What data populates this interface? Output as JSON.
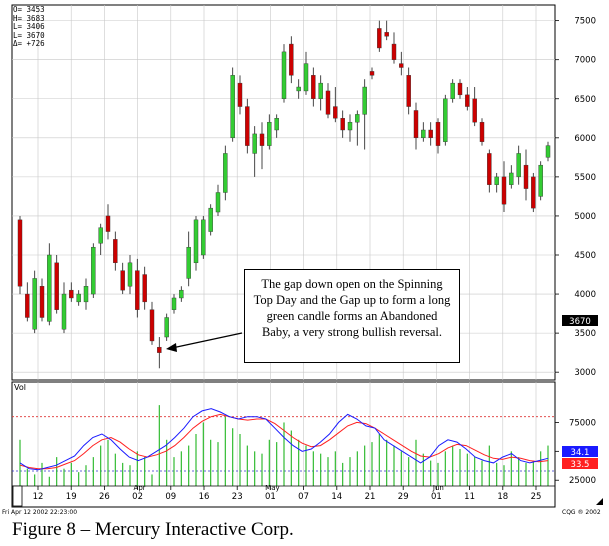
{
  "caption": "Figure 8 – Mercury Interactive Corp.",
  "annotation": "The gap down open on the Spinning Top Day and the Gap up to form a long green candle forms an Abandoned Baby, a very strong bullish reversal.",
  "ohlc_box": {
    "open": "O=  3453",
    "high": "H=  3683",
    "low": "L=  3406",
    "last": "L=  3670",
    "change": "Δ=  +726"
  },
  "footer_left": "Fri Apr 12 2002 22:23:00",
  "footer_right": "CQG ® 2002",
  "colors": {
    "up": "#33cc33",
    "down": "#cc0000",
    "grid": "#c8c8c8",
    "dot_red": "#dd3333",
    "dot_blue": "#3333cc",
    "blue_line": "#1a1aff",
    "red_line": "#ff2020"
  },
  "chart_data": {
    "type": "candlestick",
    "price": {
      "ylim": [
        2900,
        7700
      ],
      "yticks": [
        3000,
        3500,
        4000,
        4500,
        5000,
        5500,
        6000,
        6500,
        7000,
        7500
      ],
      "ytick_labels": [
        "3000",
        "3500",
        "4000",
        "4500",
        "5000",
        "5500",
        "6000",
        "6500",
        "7000",
        "7500"
      ],
      "last_label": "3670",
      "last_value": 3670,
      "candles": [
        {
          "o": 4950,
          "h": 5000,
          "l": 4000,
          "c": 4100
        },
        {
          "o": 4000,
          "h": 4150,
          "l": 3650,
          "c": 3700
        },
        {
          "o": 3550,
          "h": 4300,
          "l": 3500,
          "c": 4200
        },
        {
          "o": 4100,
          "h": 4200,
          "l": 3650,
          "c": 3700
        },
        {
          "o": 3650,
          "h": 4650,
          "l": 3600,
          "c": 4500
        },
        {
          "o": 4400,
          "h": 4500,
          "l": 3750,
          "c": 3800
        },
        {
          "o": 3550,
          "h": 4150,
          "l": 3500,
          "c": 4000
        },
        {
          "o": 4050,
          "h": 4150,
          "l": 3900,
          "c": 3950
        },
        {
          "o": 3900,
          "h": 4050,
          "l": 3850,
          "c": 4000
        },
        {
          "o": 3900,
          "h": 4200,
          "l": 3800,
          "c": 4100
        },
        {
          "o": 4000,
          "h": 4650,
          "l": 3950,
          "c": 4600
        },
        {
          "o": 4650,
          "h": 4900,
          "l": 4500,
          "c": 4850
        },
        {
          "o": 5000,
          "h": 5150,
          "l": 4700,
          "c": 4800
        },
        {
          "o": 4700,
          "h": 4800,
          "l": 4300,
          "c": 4400
        },
        {
          "o": 4300,
          "h": 4400,
          "l": 4000,
          "c": 4050
        },
        {
          "o": 4100,
          "h": 4500,
          "l": 4000,
          "c": 4400
        },
        {
          "o": 4300,
          "h": 4450,
          "l": 3700,
          "c": 3800
        },
        {
          "o": 4250,
          "h": 4350,
          "l": 3800,
          "c": 3900
        },
        {
          "o": 3800,
          "h": 3900,
          "l": 3350,
          "c": 3400
        },
        {
          "o": 3320,
          "h": 3450,
          "l": 3050,
          "c": 3250
        },
        {
          "o": 3450,
          "h": 3750,
          "l": 3400,
          "c": 3700
        },
        {
          "o": 3800,
          "h": 4000,
          "l": 3750,
          "c": 3950
        },
        {
          "o": 3950,
          "h": 4100,
          "l": 3900,
          "c": 4050
        },
        {
          "o": 4200,
          "h": 4800,
          "l": 4100,
          "c": 4600
        },
        {
          "o": 4400,
          "h": 5000,
          "l": 4300,
          "c": 4950
        },
        {
          "o": 4500,
          "h": 5000,
          "l": 4450,
          "c": 4950
        },
        {
          "o": 4800,
          "h": 5150,
          "l": 4750,
          "c": 5100
        },
        {
          "o": 5050,
          "h": 5400,
          "l": 5000,
          "c": 5300
        },
        {
          "o": 5300,
          "h": 5900,
          "l": 5200,
          "c": 5800
        },
        {
          "o": 6000,
          "h": 6900,
          "l": 5950,
          "c": 6800
        },
        {
          "o": 6700,
          "h": 6800,
          "l": 6300,
          "c": 6400
        },
        {
          "o": 6400,
          "h": 6500,
          "l": 5800,
          "c": 5900
        },
        {
          "o": 5800,
          "h": 6150,
          "l": 5500,
          "c": 6050
        },
        {
          "o": 6050,
          "h": 6200,
          "l": 5600,
          "c": 5900
        },
        {
          "o": 5900,
          "h": 6300,
          "l": 5850,
          "c": 6200
        },
        {
          "o": 6100,
          "h": 6300,
          "l": 6000,
          "c": 6250
        },
        {
          "o": 6500,
          "h": 7200,
          "l": 6450,
          "c": 7100
        },
        {
          "o": 7200,
          "h": 7300,
          "l": 6700,
          "c": 6800
        },
        {
          "o": 6600,
          "h": 6750,
          "l": 6500,
          "c": 6650
        },
        {
          "o": 6600,
          "h": 7100,
          "l": 6550,
          "c": 6950
        },
        {
          "o": 6800,
          "h": 6900,
          "l": 6400,
          "c": 6500
        },
        {
          "o": 6500,
          "h": 6800,
          "l": 6350,
          "c": 6700
        },
        {
          "o": 6600,
          "h": 6700,
          "l": 6250,
          "c": 6300
        },
        {
          "o": 6400,
          "h": 6650,
          "l": 6200,
          "c": 6250
        },
        {
          "o": 6250,
          "h": 6350,
          "l": 6000,
          "c": 6100
        },
        {
          "o": 6100,
          "h": 6300,
          "l": 5950,
          "c": 6200
        },
        {
          "o": 6200,
          "h": 6350,
          "l": 5900,
          "c": 6300
        },
        {
          "o": 6300,
          "h": 6750,
          "l": 5850,
          "c": 6650
        },
        {
          "o": 6850,
          "h": 6900,
          "l": 6750,
          "c": 6800
        },
        {
          "o": 7400,
          "h": 7500,
          "l": 7100,
          "c": 7150
        },
        {
          "o": 7350,
          "h": 7500,
          "l": 7250,
          "c": 7300
        },
        {
          "o": 7200,
          "h": 7350,
          "l": 6950,
          "c": 7000
        },
        {
          "o": 6950,
          "h": 7100,
          "l": 6800,
          "c": 6900
        },
        {
          "o": 6800,
          "h": 6900,
          "l": 6300,
          "c": 6400
        },
        {
          "o": 6350,
          "h": 6450,
          "l": 5850,
          "c": 6000
        },
        {
          "o": 6000,
          "h": 6200,
          "l": 5950,
          "c": 6100
        },
        {
          "o": 6100,
          "h": 6200,
          "l": 5900,
          "c": 6000
        },
        {
          "o": 6200,
          "h": 6250,
          "l": 5800,
          "c": 5900
        },
        {
          "o": 5950,
          "h": 6550,
          "l": 5900,
          "c": 6500
        },
        {
          "o": 6500,
          "h": 6750,
          "l": 6450,
          "c": 6700
        },
        {
          "o": 6700,
          "h": 6750,
          "l": 6500,
          "c": 6550
        },
        {
          "o": 6550,
          "h": 6650,
          "l": 6350,
          "c": 6400
        },
        {
          "o": 6500,
          "h": 6650,
          "l": 6150,
          "c": 6200
        },
        {
          "o": 6200,
          "h": 6250,
          "l": 5900,
          "c": 5950
        },
        {
          "o": 5800,
          "h": 5850,
          "l": 5300,
          "c": 5400
        },
        {
          "o": 5400,
          "h": 5550,
          "l": 5300,
          "c": 5500
        },
        {
          "o": 5500,
          "h": 5700,
          "l": 5050,
          "c": 5150
        },
        {
          "o": 5400,
          "h": 5650,
          "l": 5350,
          "c": 5550
        },
        {
          "o": 5500,
          "h": 5900,
          "l": 5400,
          "c": 5800
        },
        {
          "o": 5650,
          "h": 5850,
          "l": 5200,
          "c": 5350
        },
        {
          "o": 5500,
          "h": 5550,
          "l": 5050,
          "c": 5100
        },
        {
          "o": 5250,
          "h": 5700,
          "l": 5200,
          "c": 5650
        },
        {
          "o": 5750,
          "h": 5950,
          "l": 5700,
          "c": 5900
        }
      ]
    },
    "volume": {
      "label": "Vol",
      "ylim": [
        20000,
        110000
      ],
      "yticks": [
        25000,
        50000,
        75000
      ],
      "ytick_labels": [
        "25000",
        "50000",
        "75000"
      ],
      "blue_label": "34.1",
      "red_label": "33.5",
      "blue_value": 42000,
      "red_value": 41000,
      "dotted_levels": [
        80000,
        33000
      ],
      "values": [
        60000,
        35000,
        30000,
        40000,
        28000,
        45000,
        35000,
        40000,
        32000,
        38000,
        45000,
        55000,
        60000,
        48000,
        40000,
        38000,
        50000,
        45000,
        30000,
        90000,
        60000,
        45000,
        50000,
        55000,
        65000,
        75000,
        60000,
        58000,
        80000,
        70000,
        65000,
        55000,
        50000,
        48000,
        60000,
        58000,
        75000,
        68000,
        60000,
        55000,
        50000,
        48000,
        45000,
        50000,
        40000,
        45000,
        50000,
        55000,
        58000,
        65000,
        60000,
        55000,
        50000,
        45000,
        60000,
        48000,
        42000,
        40000,
        50000,
        55000,
        52000,
        48000,
        45000,
        42000,
        55000,
        40000,
        38000,
        50000,
        45000,
        40000,
        42000,
        50000,
        55000
      ],
      "blue_line": [
        40000,
        35000,
        34000,
        36000,
        38000,
        42000,
        46000,
        55000,
        62000,
        65000,
        60000,
        52000,
        45000,
        42000,
        45000,
        50000,
        55000,
        62000,
        70000,
        80000,
        85000,
        87000,
        84000,
        80000,
        78000,
        80000,
        80000,
        78000,
        70000,
        62000,
        55000,
        50000,
        52000,
        58000,
        65000,
        75000,
        82000,
        78000,
        72000,
        70000,
        60000,
        55000,
        50000,
        45000,
        40000,
        45000,
        55000,
        60000,
        58000,
        52000,
        45000,
        42000,
        40000,
        45000,
        48000,
        42000,
        40000,
        42000,
        44000
      ],
      "red_line": [
        38000,
        36000,
        35000,
        35000,
        36000,
        39000,
        42000,
        48000,
        55000,
        60000,
        62000,
        58000,
        52000,
        47000,
        45000,
        47000,
        50000,
        55000,
        62000,
        70000,
        76000,
        80000,
        82000,
        80000,
        78000,
        77000,
        78000,
        78000,
        74000,
        68000,
        62000,
        57000,
        54000,
        55000,
        60000,
        66000,
        72000,
        75000,
        74000,
        70000,
        65000,
        60000,
        55000,
        50000,
        46000,
        45000,
        48000,
        53000,
        56000,
        55000,
        51000,
        47000,
        44000,
        43000,
        45000,
        44000,
        42000,
        41000,
        42000
      ]
    },
    "x_tick_labels": [
      "12",
      "19",
      "26",
      "02",
      "09",
      "16",
      "23",
      "01",
      "07",
      "14",
      "21",
      "29",
      "01",
      "11",
      "18",
      "25"
    ],
    "month_labels": [
      "Apr",
      "May",
      "Jun"
    ]
  }
}
